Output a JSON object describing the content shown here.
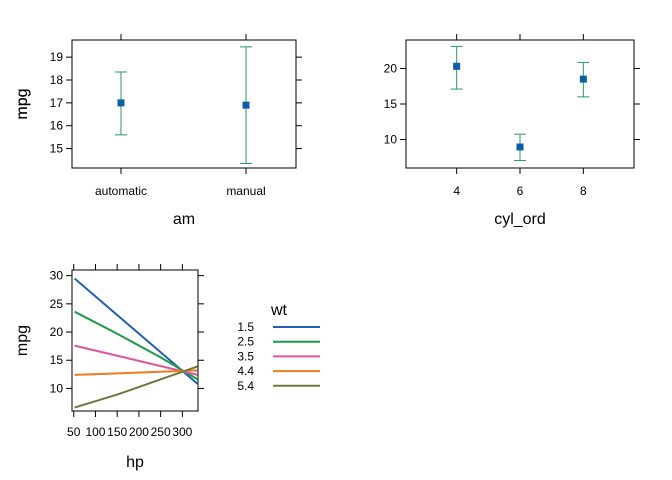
{
  "colors": {
    "point": "#0b5ea8",
    "errorbar": "#2a9a5c",
    "frame": "#000000",
    "wt_lines": [
      "#1f5fb5",
      "#1f9a46",
      "#e0559a",
      "#f07a1e",
      "#6b7a3a"
    ]
  },
  "chart_data": [
    {
      "type": "errorbar",
      "xlabel": "am",
      "ylabel": "mpg",
      "categories": [
        "automatic",
        "manual"
      ],
      "values": [
        17.0,
        16.9
      ],
      "lower": [
        15.6,
        14.35
      ],
      "upper": [
        18.35,
        19.45
      ],
      "ylim": [
        14.15,
        19.75
      ],
      "yticks": [
        15,
        16,
        17,
        18,
        19
      ],
      "grid": false
    },
    {
      "type": "errorbar",
      "xlabel": "cyl_ord",
      "ylabel": "mpg",
      "x": [
        4,
        6,
        8
      ],
      "values": [
        20.3,
        8.95,
        18.5
      ],
      "lower": [
        17.1,
        7.05,
        16.0
      ],
      "upper": [
        23.1,
        10.75,
        20.85
      ],
      "xlim": [
        2.4,
        9.6
      ],
      "xticks": [
        4,
        6,
        8
      ],
      "ylim": [
        6.0,
        24.0
      ],
      "yticks": [
        10,
        15,
        20
      ],
      "grid": false
    },
    {
      "type": "line",
      "xlabel": "hp",
      "ylabel": "mpg",
      "xlim": [
        46,
        336
      ],
      "xticks": [
        50,
        100,
        150,
        200,
        250,
        300
      ],
      "ylim": [
        6.0,
        31.0
      ],
      "yticks": [
        10,
        15,
        20,
        25,
        30
      ],
      "legend_title": "wt",
      "legend_position": "right",
      "series": [
        {
          "name": "1.5",
          "x": [
            52,
            335
          ],
          "y": [
            29.5,
            10.8
          ]
        },
        {
          "name": "2.5",
          "x": [
            52,
            150,
            250,
            335
          ],
          "y": [
            23.6,
            19.7,
            15.5,
            11.6
          ]
        },
        {
          "name": "3.5",
          "x": [
            52,
            335
          ],
          "y": [
            17.6,
            12.4
          ]
        },
        {
          "name": "4.4",
          "x": [
            52,
            335
          ],
          "y": [
            12.4,
            13.2
          ]
        },
        {
          "name": "5.4",
          "x": [
            52,
            150,
            335
          ],
          "y": [
            6.6,
            8.9,
            13.9
          ]
        }
      ],
      "grid": false
    }
  ]
}
